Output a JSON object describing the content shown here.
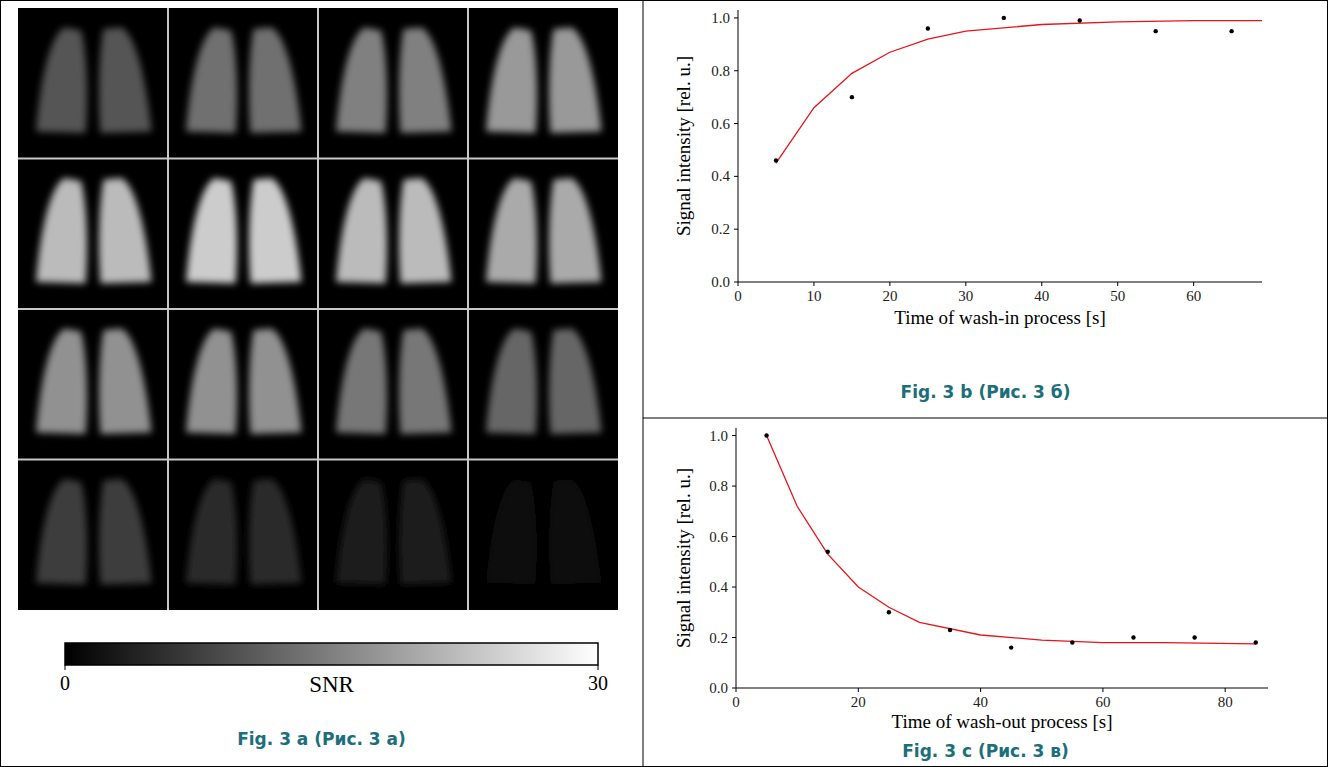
{
  "figure_a": {
    "caption": "Fig. 3 a (Рис. 3 а)",
    "frames_snr": [
      10,
      13,
      15,
      18,
      22,
      24,
      22,
      20,
      17,
      17,
      14,
      12,
      7,
      5,
      3,
      1
    ],
    "colorbar": {
      "label": "SNR",
      "range": [
        0,
        30
      ],
      "ticks": [
        0,
        30
      ]
    }
  },
  "chart_data": [
    {
      "type": "scatter",
      "caption": "Fig. 3 b (Рис. 3 б)",
      "xlabel": "Time of wash-in process [s]",
      "ylabel": "Signal intensity [rel. u.]",
      "xlim": [
        0,
        69
      ],
      "xticks": [
        0,
        10,
        20,
        30,
        40,
        50,
        60
      ],
      "ylim": [
        0,
        1.03
      ],
      "yticks": [
        {
          "value": 0,
          "label": "0.0"
        },
        {
          "value": 0.2,
          "label": "0.2"
        },
        {
          "value": 0.4,
          "label": "0.4"
        },
        {
          "value": 0.6,
          "label": "0.6"
        },
        {
          "value": 0.8,
          "label": "0.8"
        },
        {
          "value": 1,
          "label": "1.0"
        }
      ],
      "grid": false,
      "series": [
        {
          "type": "scatter",
          "color": "#000000",
          "marker": "circle",
          "x": [
            5,
            15,
            25,
            35,
            45,
            55,
            65
          ],
          "values": [
            0.46,
            0.7,
            0.96,
            1.0,
            0.99,
            0.95,
            0.95
          ]
        },
        {
          "type": "line",
          "color": "#e8141b",
          "line_style": "solid",
          "x": [
            5,
            10,
            15,
            20,
            25,
            30,
            40,
            50,
            60,
            69
          ],
          "values": [
            0.45,
            0.66,
            0.79,
            0.87,
            0.92,
            0.95,
            0.975,
            0.985,
            0.99,
            0.99
          ]
        }
      ]
    },
    {
      "type": "scatter",
      "caption": "Fig. 3 c (Рис. 3 в)",
      "xlabel": "Time of wash-out process [s]",
      "ylabel": "Signal intensity [rel. u.]",
      "xlim": [
        0,
        87
      ],
      "xticks": [
        0,
        20,
        40,
        60,
        80
      ],
      "ylim": [
        0,
        1.03
      ],
      "yticks": [
        {
          "value": 0,
          "label": "0.0"
        },
        {
          "value": 0.2,
          "label": "0.2"
        },
        {
          "value": 0.4,
          "label": "0.4"
        },
        {
          "value": 0.6,
          "label": "0.6"
        },
        {
          "value": 0.8,
          "label": "0.8"
        },
        {
          "value": 1,
          "label": "1.0"
        }
      ],
      "grid": false,
      "series": [
        {
          "type": "scatter",
          "color": "#000000",
          "marker": "circle",
          "x": [
            5,
            15,
            25,
            35,
            45,
            55,
            65,
            75,
            85
          ],
          "values": [
            1.0,
            0.54,
            0.3,
            0.23,
            0.16,
            0.18,
            0.2,
            0.2,
            0.18
          ]
        },
        {
          "type": "line",
          "color": "#e8141b",
          "line_style": "solid",
          "x": [
            5,
            10,
            15,
            20,
            25,
            30,
            40,
            50,
            60,
            70,
            85
          ],
          "values": [
            1.0,
            0.72,
            0.53,
            0.4,
            0.32,
            0.26,
            0.21,
            0.19,
            0.18,
            0.18,
            0.175
          ]
        }
      ]
    }
  ]
}
